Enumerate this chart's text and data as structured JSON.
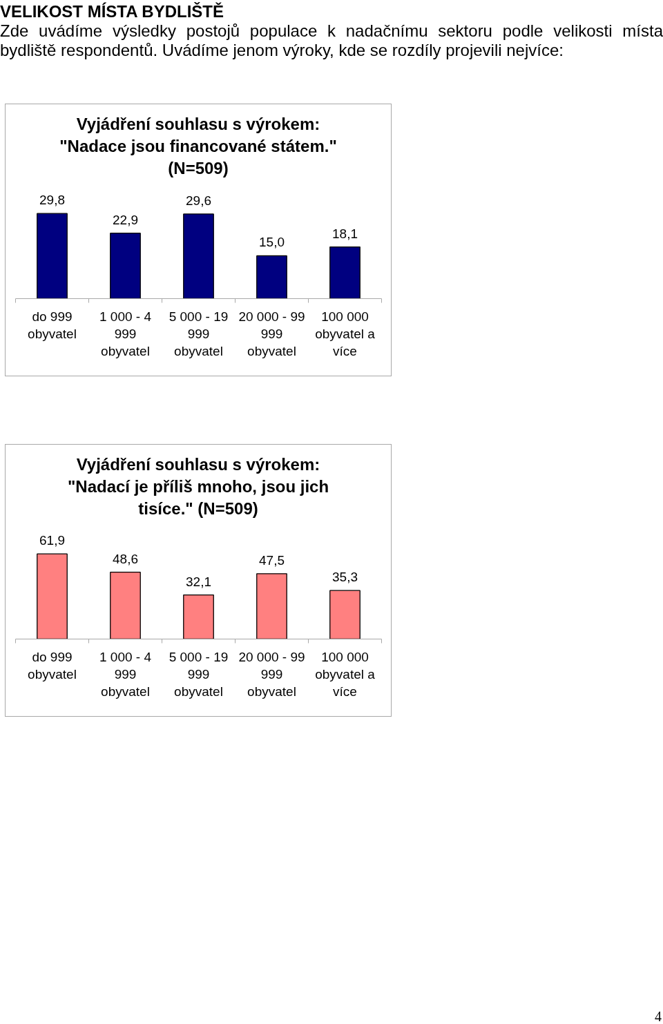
{
  "chart_data": [
    {
      "type": "bar",
      "title": "Vyjádření souhlasu s výrokem: \"Nadace jsou financované státem.\" (N=509)",
      "annotations": [
        "VELIKOST MÍSTA BYDLIŠTĚ",
        "Zde uvádíme výsledky postojů populace k nadačnímu sektoru podle velikosti místa bydliště respondentů. Uvádíme jenom výroky, kde se rozdíly projevili nejvíce:"
      ],
      "categories": [
        "do 999 obyvatel",
        "1 000 - 4 999 obyvatel",
        "5 000 - 19 999 obyvatel",
        "20 000 - 99 999 obyvatel",
        "100 000 obyvatel a více"
      ],
      "values": [
        29.8,
        22.9,
        29.6,
        15.0,
        18.1
      ],
      "value_labels": [
        "29,8",
        "22,9",
        "29,6",
        "15,0",
        "18,1"
      ],
      "color": "#000080"
    },
    {
      "type": "bar",
      "title": "Vyjádření souhlasu s výrokem: \"Nadací je příliš mnoho, jsou jich tisíce.\" (N=509)",
      "annotations": [
        "4"
      ],
      "categories": [
        "do 999 obyvatel",
        "1 000 - 4 999 obyvatel",
        "5 000 - 19 999 obyvatel",
        "20 000 - 99 999 obyvatel",
        "100 000 obyvatel a více"
      ],
      "values": [
        61.9,
        48.6,
        32.1,
        47.5,
        35.3
      ],
      "value_labels": [
        "61,9",
        "48,6",
        "32,1",
        "47,5",
        "35,3"
      ],
      "color": "#ff8080"
    }
  ]
}
